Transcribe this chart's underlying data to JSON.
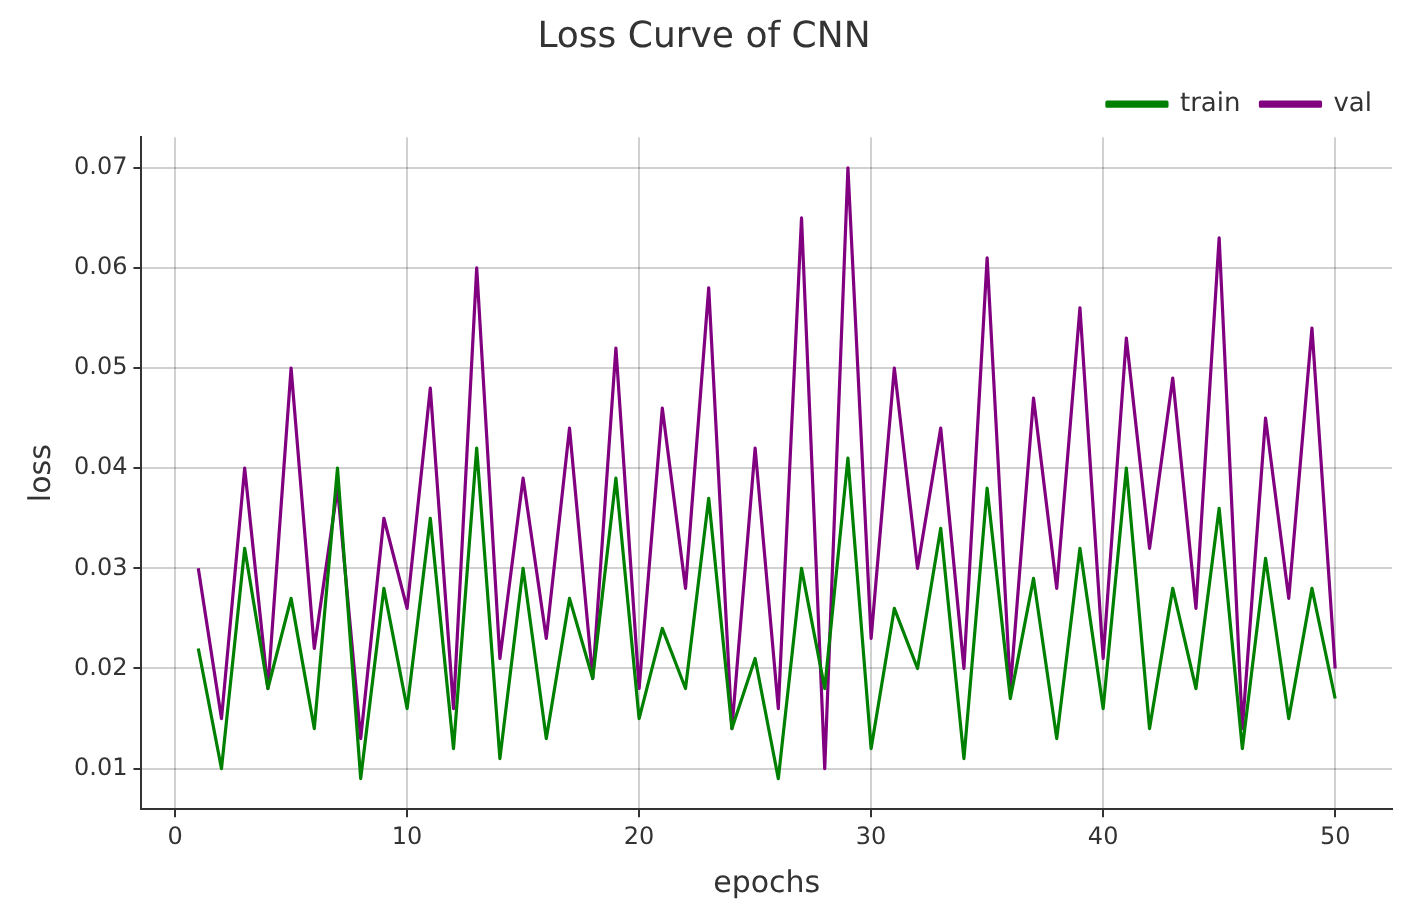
{
  "chart_data": {
    "type": "line",
    "title": "Loss Curve of CNN",
    "xlabel": "epochs",
    "ylabel": "loss",
    "x": [
      1,
      2,
      3,
      4,
      5,
      6,
      7,
      8,
      9,
      10,
      11,
      12,
      13,
      14,
      15,
      16,
      17,
      18,
      19,
      20,
      21,
      22,
      23,
      24,
      25,
      26,
      27,
      28,
      29,
      30,
      31,
      32,
      33,
      34,
      35,
      36,
      37,
      38,
      39,
      40,
      41,
      42,
      43,
      44,
      45,
      46,
      47,
      48,
      49,
      50
    ],
    "series": [
      {
        "name": "train",
        "color": "#008000",
        "values": [
          0.022,
          0.01,
          0.032,
          0.018,
          0.027,
          0.014,
          0.04,
          0.009,
          0.028,
          0.016,
          0.035,
          0.012,
          0.042,
          0.011,
          0.03,
          0.013,
          0.027,
          0.019,
          0.039,
          0.015,
          0.024,
          0.018,
          0.037,
          0.014,
          0.021,
          0.009,
          0.03,
          0.018,
          0.041,
          0.012,
          0.026,
          0.02,
          0.034,
          0.011,
          0.038,
          0.017,
          0.029,
          0.013,
          0.032,
          0.016,
          0.04,
          0.014,
          0.028,
          0.018,
          0.036,
          0.012,
          0.031,
          0.015,
          0.028,
          0.017
        ]
      },
      {
        "name": "val",
        "color": "#800080",
        "values": [
          0.03,
          0.015,
          0.04,
          0.018,
          0.05,
          0.022,
          0.038,
          0.013,
          0.035,
          0.026,
          0.048,
          0.016,
          0.06,
          0.021,
          0.039,
          0.023,
          0.044,
          0.019,
          0.052,
          0.018,
          0.046,
          0.028,
          0.058,
          0.014,
          0.042,
          0.016,
          0.065,
          0.01,
          0.07,
          0.023,
          0.05,
          0.03,
          0.044,
          0.02,
          0.061,
          0.018,
          0.047,
          0.028,
          0.056,
          0.021,
          0.053,
          0.032,
          0.049,
          0.026,
          0.063,
          0.014,
          0.045,
          0.027,
          0.054,
          0.02
        ]
      }
    ],
    "xlim": [
      -1.45,
      52.45
    ],
    "xticks": [
      0,
      10,
      20,
      30,
      40,
      50
    ],
    "ylim": [
      0.00595,
      0.07305
    ],
    "yticks": [
      0.01,
      0.02,
      0.03,
      0.04,
      0.05,
      0.06,
      0.07
    ],
    "grid": true,
    "legend": "top right",
    "marker": "none",
    "line_style": "solid"
  }
}
